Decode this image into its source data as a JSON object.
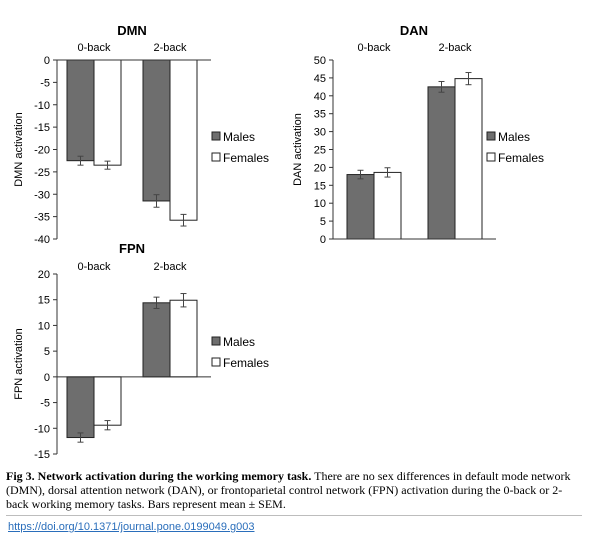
{
  "chart_data": [
    {
      "id": "dmn",
      "type": "bar",
      "title": "DMN",
      "ylabel": "DMN activation",
      "categories": [
        "0-back",
        "2-back"
      ],
      "ylim": [
        -40,
        0
      ],
      "yticks": [
        0,
        -5,
        -10,
        -15,
        -20,
        -25,
        -30,
        -35,
        -40
      ],
      "legend_placement": "right",
      "series": [
        {
          "name": "Males",
          "color": "#6e6e6e",
          "values": [
            -22.5,
            -31.5
          ],
          "sem": [
            1.0,
            1.4
          ]
        },
        {
          "name": "Females",
          "color": "#ffffff",
          "values": [
            -23.5,
            -35.8
          ],
          "sem": [
            0.9,
            1.3
          ]
        }
      ]
    },
    {
      "id": "dan",
      "type": "bar",
      "title": "DAN",
      "ylabel": "DAN activation",
      "categories": [
        "0-back",
        "2-back"
      ],
      "ylim": [
        0,
        50
      ],
      "yticks": [
        0,
        5,
        10,
        15,
        20,
        25,
        30,
        35,
        40,
        45,
        50
      ],
      "legend_placement": "right",
      "series": [
        {
          "name": "Males",
          "color": "#6e6e6e",
          "values": [
            18.0,
            42.5
          ],
          "sem": [
            1.2,
            1.5
          ]
        },
        {
          "name": "Females",
          "color": "#ffffff",
          "values": [
            18.6,
            44.8
          ],
          "sem": [
            1.3,
            1.7
          ]
        }
      ]
    },
    {
      "id": "fpn",
      "type": "bar",
      "title": "FPN",
      "ylabel": "FPN activation",
      "categories": [
        "0-back",
        "2-back"
      ],
      "ylim": [
        -15,
        20
      ],
      "yticks": [
        20,
        15,
        10,
        5,
        0,
        -5,
        -10,
        -15
      ],
      "legend_placement": "right",
      "series": [
        {
          "name": "Males",
          "color": "#6e6e6e",
          "values": [
            -11.8,
            14.4
          ],
          "sem": [
            0.9,
            1.1
          ]
        },
        {
          "name": "Females",
          "color": "#ffffff",
          "values": [
            -9.4,
            14.9
          ],
          "sem": [
            0.9,
            1.3
          ]
        }
      ]
    }
  ],
  "caption": {
    "label": "Fig 3.",
    "title": "Network activation during the working memory task.",
    "text": "There are no sex differences in default mode network (DMN), dorsal attention network (DAN), or frontoparietal control network (FPN) activation during the 0-back or 2-back working memory tasks. Bars represent mean ± SEM."
  },
  "doi": "https://doi.org/10.1371/journal.pone.0199049.g003"
}
